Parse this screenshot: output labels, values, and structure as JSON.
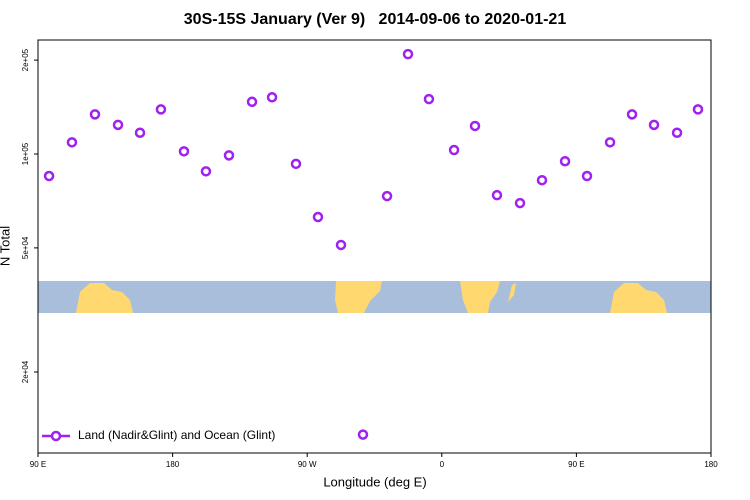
{
  "chart_data": {
    "type": "scatter",
    "title": "30S-15S January (Ver 9)   2014-09-06 to 2020-01-21",
    "x_label": "Longitude (deg E)",
    "y_label": "N Total",
    "xlim": [
      90,
      540
    ],
    "xticks": [
      {
        "value": 90,
        "label": "90 E"
      },
      180,
      {
        "value": 270,
        "label": "90 W"
      },
      {
        "value": 360,
        "label": "0"
      },
      {
        "value": 450,
        "label": "90 E"
      },
      {
        "value": 540,
        "label": "180"
      }
    ],
    "ylim": [
      11000,
      232000
    ],
    "yticks": [
      {
        "value": 20000,
        "label": "2e+04"
      },
      {
        "value": 50000,
        "label": "5e+04"
      },
      {
        "value": 100000,
        "label": "1e+05"
      },
      {
        "value": 200000,
        "label": "2e+05"
      }
    ],
    "ylog": true,
    "legend": "bottom left",
    "series": [
      {
        "name": "Land (Nadir&Glint) and Ocean (Glint)",
        "color": "#a020f0",
        "x": [
          97.4,
          112.7,
          128.1,
          143.5,
          158.2,
          172.2,
          187.6,
          202.3,
          217.7,
          233.1,
          246.5,
          262.5,
          277.2,
          292.6,
          307.3,
          323.4,
          337.4,
          351.4,
          368.2,
          382.2,
          396.9,
          412.3,
          427.0,
          442.4,
          457.1,
          472.5,
          487.2,
          501.9,
          517.3,
          531.3
        ],
        "values": [
          85000,
          109000,
          134000,
          124000,
          117000,
          139000,
          102000,
          88000,
          99000,
          147000,
          152000,
          93000,
          62800,
          51100,
          12600,
          73300,
          209000,
          150000,
          103000,
          123000,
          73800,
          69600,
          82400,
          94800,
          85000,
          109000,
          134000,
          124000,
          117000,
          139000
        ]
      }
    ]
  }
}
